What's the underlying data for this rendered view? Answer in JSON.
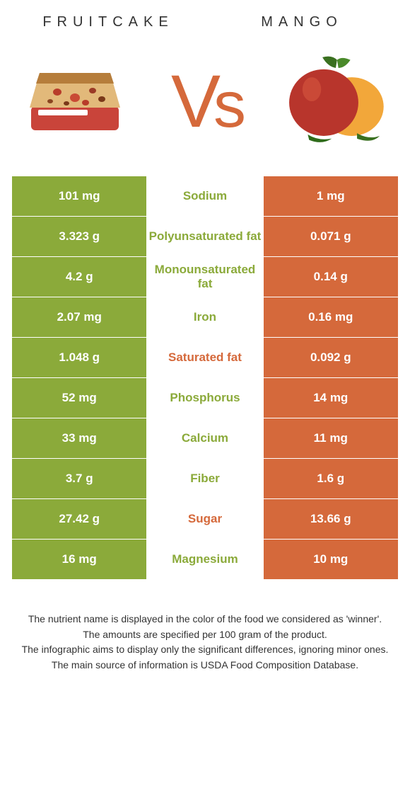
{
  "foods": {
    "left": {
      "name": "Fruitcake",
      "color": "#8baa3a"
    },
    "right": {
      "name": "Mango",
      "color": "#d5693b"
    }
  },
  "vs_label": "Vs",
  "rows": [
    {
      "nutrient": "Sodium",
      "left": "101 mg",
      "right": "1 mg",
      "winner": "left"
    },
    {
      "nutrient": "Polyunsaturated fat",
      "left": "3.323 g",
      "right": "0.071 g",
      "winner": "left"
    },
    {
      "nutrient": "Monounsaturated fat",
      "left": "4.2 g",
      "right": "0.14 g",
      "winner": "left"
    },
    {
      "nutrient": "Iron",
      "left": "2.07 mg",
      "right": "0.16 mg",
      "winner": "left"
    },
    {
      "nutrient": "Saturated fat",
      "left": "1.048 g",
      "right": "0.092 g",
      "winner": "right"
    },
    {
      "nutrient": "Phosphorus",
      "left": "52 mg",
      "right": "14 mg",
      "winner": "left"
    },
    {
      "nutrient": "Calcium",
      "left": "33 mg",
      "right": "11 mg",
      "winner": "left"
    },
    {
      "nutrient": "Fiber",
      "left": "3.7 g",
      "right": "1.6 g",
      "winner": "left"
    },
    {
      "nutrient": "Sugar",
      "left": "27.42 g",
      "right": "13.66 g",
      "winner": "right"
    },
    {
      "nutrient": "Magnesium",
      "left": "16 mg",
      "right": "10 mg",
      "winner": "left"
    }
  ],
  "footer_lines": [
    "The nutrient name is displayed in the color of the food we considered as 'winner'.",
    "The amounts are specified per 100 gram of the product.",
    "The infographic aims to display only the significant differences, ignoring minor ones.",
    "The main source of information is USDA Food Composition Database."
  ]
}
